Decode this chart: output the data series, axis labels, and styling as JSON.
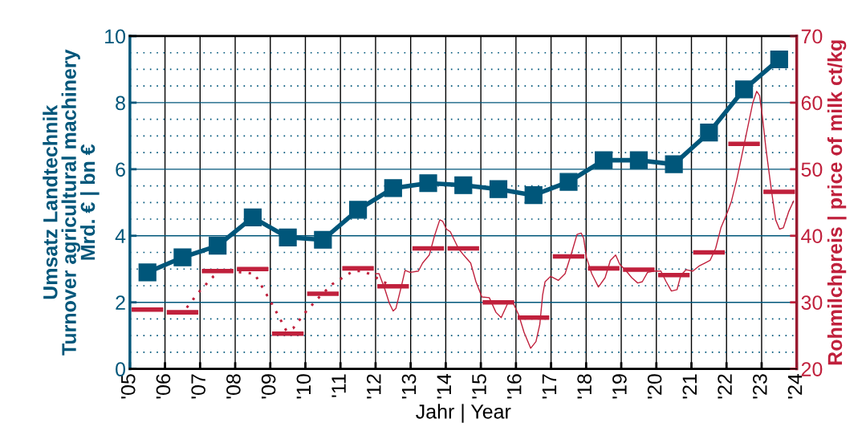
{
  "chart_data": {
    "type": "line",
    "xlabel": "Jahr | Year",
    "ylabel": "Umsatz Landtechnik\nTurnover agricultural machinery\nMrd. € | bn €",
    "y2label": "Rohmilchpreis | price of milk ct/kg",
    "xlim": [
      2005,
      2024
    ],
    "xticks": [
      {
        "value": 2005,
        "label": "'05"
      },
      {
        "value": 2006,
        "label": "'06"
      },
      {
        "value": 2007,
        "label": "'07"
      },
      {
        "value": 2008,
        "label": "'08"
      },
      {
        "value": 2009,
        "label": "'09"
      },
      {
        "value": 2010,
        "label": "'10"
      },
      {
        "value": 2011,
        "label": "'11"
      },
      {
        "value": 2012,
        "label": "'12"
      },
      {
        "value": 2013,
        "label": "'13"
      },
      {
        "value": 2014,
        "label": "'14"
      },
      {
        "value": 2015,
        "label": "'15"
      },
      {
        "value": 2016,
        "label": "'16"
      },
      {
        "value": 2017,
        "label": "'17"
      },
      {
        "value": 2018,
        "label": "'18"
      },
      {
        "value": 2019,
        "label": "'19"
      },
      {
        "value": 2020,
        "label": "'20"
      },
      {
        "value": 2021,
        "label": "'21"
      },
      {
        "value": 2022,
        "label": "'22"
      },
      {
        "value": 2023,
        "label": "'23"
      },
      {
        "value": 2024,
        "label": "'24"
      }
    ],
    "ylim": [
      0,
      10
    ],
    "yticks": [
      0,
      {
        "value": 0.5,
        "label": null
      },
      {
        "value": 1,
        "label": null
      },
      {
        "value": 1.5,
        "label": null
      },
      2,
      {
        "value": 2.5,
        "label": null
      },
      {
        "value": 3,
        "label": null
      },
      {
        "value": 3.5,
        "label": null
      },
      4,
      {
        "value": 4.5,
        "label": null
      },
      {
        "value": 5,
        "label": null
      },
      {
        "value": 5.5,
        "label": null
      },
      6,
      {
        "value": 6.5,
        "label": null
      },
      {
        "value": 7,
        "label": null
      },
      {
        "value": 7.5,
        "label": null
      },
      8,
      {
        "value": 8.5,
        "label": null
      },
      {
        "value": 9,
        "label": null
      },
      {
        "value": 9.5,
        "label": null
      },
      10
    ],
    "y2lim": [
      20,
      70
    ],
    "y2ticks": [
      20,
      30,
      40,
      50,
      60,
      70
    ],
    "grid": true,
    "series": [
      {
        "color": "#00567a",
        "marker": "square",
        "line_style": "solid",
        "x": [
          2005.5,
          2006.5,
          2007.5,
          2008.5,
          2009.5,
          2010.5,
          2011.5,
          2012.5,
          2013.5,
          2014.5,
          2015.5,
          2016.5,
          2017.5,
          2018.5,
          2019.5,
          2020.5,
          2021.5,
          2022.5,
          2023.5
        ],
        "values": [
          2.9,
          3.35,
          3.7,
          4.55,
          3.95,
          3.88,
          4.78,
          5.43,
          5.58,
          5.52,
          5.4,
          5.22,
          5.62,
          6.27,
          6.27,
          6.15,
          7.1,
          8.4,
          9.3
        ]
      },
      {
        "type": "line",
        "axis": "y2",
        "color": "#c0203c",
        "marker": "none",
        "line_style": "dotted",
        "x": [
          2006.62,
          2006.96,
          2007.38,
          2007.6,
          2008.55,
          2008.97,
          2009.24,
          2009.46,
          2009.65,
          2010.0,
          2010.38,
          2010.76,
          2011.06,
          2011.36,
          2011.63,
          2011.9,
          2012.2,
          2012.39
        ],
        "values": [
          29.2,
          31.5,
          33.9,
          34.8,
          34.3,
          30.5,
          27.9,
          25.7,
          26.1,
          28.5,
          30.7,
          32.7,
          33.7,
          34.7,
          34.7,
          34.1,
          33.1,
          32.7
        ]
      },
      {
        "type": "line",
        "axis": "y2",
        "color": "#c0203c",
        "marker": "none",
        "line_style": "solid",
        "x": [
          2012.0,
          2012.1,
          2012.27,
          2012.39,
          2012.5,
          2012.58,
          2012.73,
          2012.84,
          2012.99,
          2013.22,
          2013.34,
          2013.53,
          2013.68,
          2013.83,
          2013.91,
          2014.02,
          2014.13,
          2014.36,
          2014.51,
          2014.71,
          2014.86,
          2015.03,
          2015.24,
          2015.43,
          2015.58,
          2015.77,
          2015.92,
          2016.08,
          2016.23,
          2016.42,
          2016.57,
          2016.68,
          2016.76,
          2016.83,
          2016.99,
          2017.21,
          2017.4,
          2017.59,
          2017.74,
          2017.86,
          2017.93,
          2018.01,
          2018.16,
          2018.35,
          2018.54,
          2018.69,
          2018.84,
          2018.96,
          2019.11,
          2019.3,
          2019.47,
          2019.6,
          2019.75,
          2019.94,
          2020.13,
          2020.28,
          2020.43,
          2020.59,
          2020.7,
          2020.85,
          2021.04,
          2021.23,
          2021.38,
          2021.53,
          2021.69,
          2021.84,
          2022.03,
          2022.14,
          2022.29,
          2022.45,
          2022.6,
          2022.75,
          2022.86,
          2022.94,
          2023.02,
          2023.13,
          2023.28,
          2023.4,
          2023.51,
          2023.62,
          2023.77,
          2023.91
        ],
        "values": [
          34.3,
          34.3,
          31.9,
          29.9,
          28.7,
          29.1,
          32.3,
          34.8,
          34.5,
          34.7,
          35.9,
          37.1,
          40.0,
          42.4,
          42.2,
          41.0,
          40.6,
          38.1,
          37.1,
          35.9,
          33.1,
          30.8,
          30.7,
          28.5,
          27.7,
          29.9,
          29.9,
          28.1,
          25.5,
          23.1,
          24.1,
          26.7,
          31.1,
          33.1,
          33.9,
          33.3,
          34.3,
          37.5,
          40.2,
          40.4,
          39.6,
          36.7,
          34.3,
          32.3,
          33.7,
          36.3,
          37.1,
          35.7,
          34.9,
          33.7,
          32.9,
          33.1,
          34.5,
          34.7,
          34.7,
          33.1,
          31.7,
          31.9,
          34.1,
          34.9,
          34.7,
          35.5,
          35.9,
          36.3,
          38.1,
          41.2,
          43.6,
          45.2,
          48.4,
          52.4,
          56.2,
          60.0,
          61.7,
          61.1,
          58.0,
          52.8,
          46.8,
          42.4,
          41.0,
          41.2,
          43.6,
          45.2
        ]
      },
      {
        "type": "line",
        "axis": "y2",
        "color": "#c0203c",
        "marker": "none",
        "line_style": "solid",
        "x": [
          2005.05,
          2005.95,
          2006.0,
          2006.05,
          2006.95,
          2007.0,
          2007.05,
          2007.95,
          2008.0,
          2008.05,
          2008.95,
          2009.0,
          2009.05,
          2009.95,
          2010.0,
          2010.05,
          2010.95,
          2011.0,
          2011.05,
          2011.95,
          2012.0,
          2012.05,
          2012.95,
          2013.0,
          2013.05,
          2013.95,
          2014.0,
          2014.05,
          2014.95,
          2015.0,
          2015.05,
          2015.95,
          2016.0,
          2016.05,
          2016.95,
          2017.0,
          2017.05,
          2017.95,
          2018.0,
          2018.05,
          2018.95,
          2019.0,
          2019.05,
          2019.95,
          2020.0,
          2020.05,
          2020.95,
          2021.0,
          2021.05,
          2021.95,
          2022.0,
          2022.05,
          2022.95,
          2023.0,
          2023.05,
          2023.95
        ],
        "values": [
          28.9,
          28.9,
          null,
          28.5,
          28.5,
          null,
          34.7,
          34.7,
          null,
          35.0,
          35.0,
          null,
          25.3,
          25.3,
          null,
          31.3,
          31.3,
          null,
          35.1,
          35.1,
          null,
          32.4,
          32.4,
          null,
          38.1,
          38.1,
          null,
          38.1,
          38.1,
          null,
          30.0,
          30.0,
          null,
          27.7,
          27.7,
          null,
          36.9,
          36.9,
          null,
          35.1,
          35.1,
          null,
          34.9,
          34.9,
          null,
          34.1,
          34.1,
          null,
          37.5,
          37.5,
          null,
          53.8,
          53.8,
          null,
          46.6,
          46.6
        ]
      }
    ]
  }
}
